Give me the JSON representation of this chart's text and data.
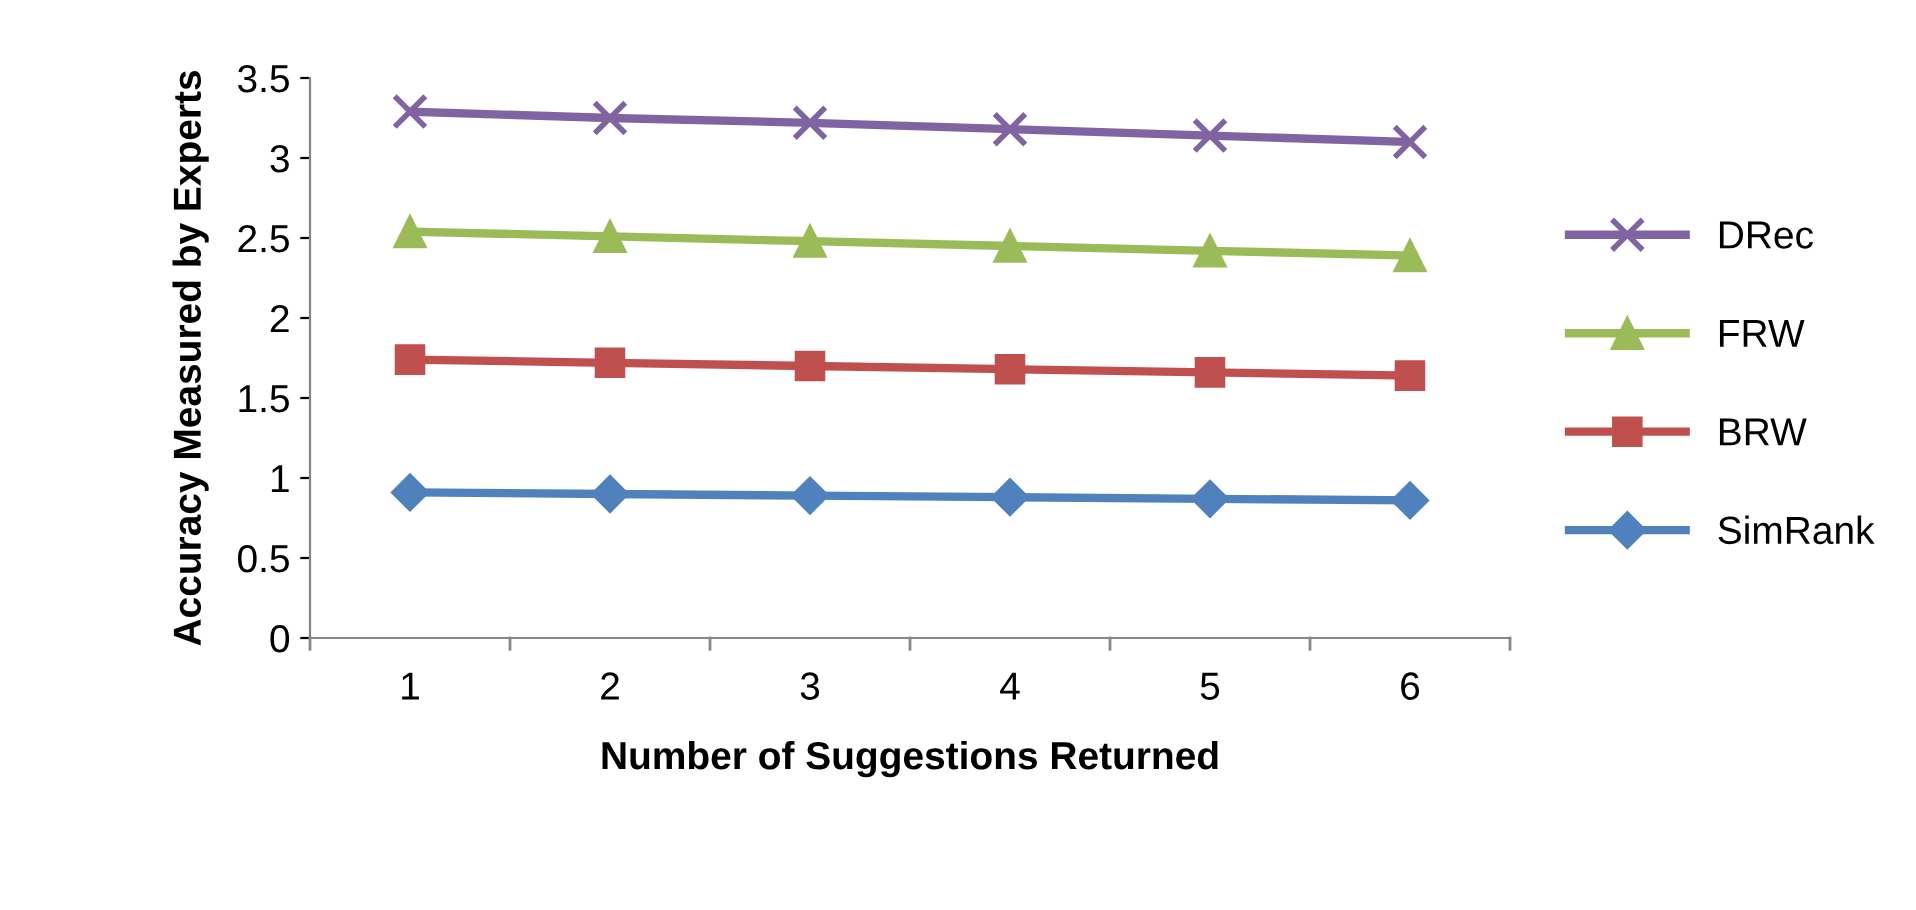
{
  "chart_data": {
    "type": "line",
    "xlabel": "Number of Suggestions Returned",
    "ylabel": "Accuracy Measured by Experts",
    "categories": [
      "1",
      "2",
      "3",
      "4",
      "5",
      "6"
    ],
    "series": [
      {
        "name": "DRec",
        "color": "#8064a2",
        "marker": "cross",
        "values": [
          3.29,
          3.25,
          3.22,
          3.18,
          3.14,
          3.1
        ]
      },
      {
        "name": "FRW",
        "color": "#9bbb59",
        "marker": "triangle",
        "values": [
          2.54,
          2.51,
          2.48,
          2.45,
          2.42,
          2.39
        ]
      },
      {
        "name": "BRW",
        "color": "#c0504d",
        "marker": "square",
        "values": [
          1.74,
          1.72,
          1.7,
          1.68,
          1.66,
          1.64
        ]
      },
      {
        "name": "SimRank",
        "color": "#4f81bd",
        "marker": "diamond",
        "values": [
          0.91,
          0.9,
          0.89,
          0.88,
          0.87,
          0.86
        ]
      }
    ],
    "ylim": [
      0,
      3.5
    ],
    "yticks": [
      0,
      0.5,
      1,
      1.5,
      2,
      2.5,
      3,
      3.5
    ],
    "grid": false,
    "legend": "right"
  }
}
